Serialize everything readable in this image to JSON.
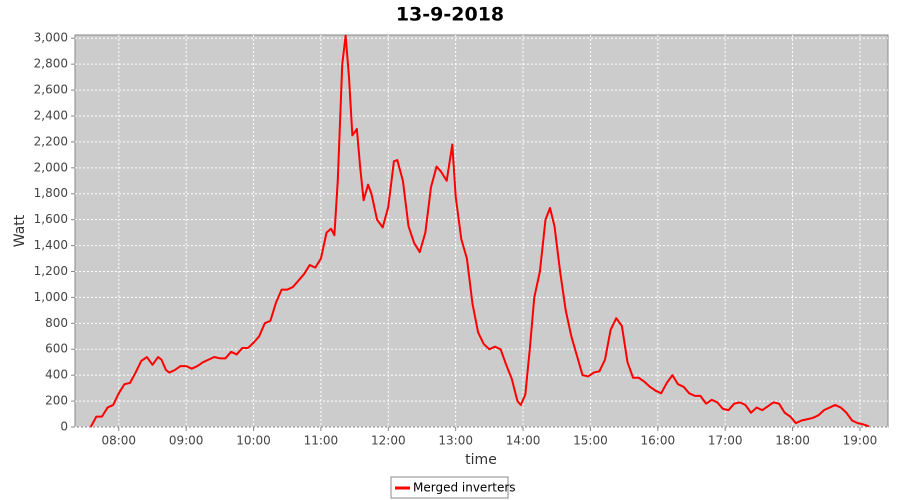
{
  "chart_data": {
    "type": "line",
    "title": "13-9-2018",
    "x_label": "time",
    "y_label": "Watt",
    "x": [
      "07:35",
      "07:40",
      "07:45",
      "07:50",
      "07:55",
      "08:00",
      "08:05",
      "08:10",
      "08:15",
      "08:20",
      "08:25",
      "08:30",
      "08:35",
      "08:38",
      "08:42",
      "08:45",
      "08:50",
      "08:55",
      "09:00",
      "09:05",
      "09:10",
      "09:15",
      "09:20",
      "09:25",
      "09:30",
      "09:35",
      "09:40",
      "09:45",
      "09:50",
      "09:55",
      "10:00",
      "10:05",
      "10:10",
      "10:15",
      "10:20",
      "10:25",
      "10:30",
      "10:35",
      "10:40",
      "10:45",
      "10:50",
      "10:55",
      "11:00",
      "11:05",
      "11:09",
      "11:12",
      "11:15",
      "11:19",
      "11:22",
      "11:25",
      "11:28",
      "11:32",
      "11:35",
      "11:38",
      "11:42",
      "11:45",
      "11:50",
      "11:55",
      "12:00",
      "12:05",
      "12:08",
      "12:13",
      "12:18",
      "12:23",
      "12:28",
      "12:33",
      "12:38",
      "12:43",
      "12:47",
      "12:52",
      "12:57",
      "13:00",
      "13:05",
      "13:10",
      "13:15",
      "13:20",
      "13:25",
      "13:30",
      "13:35",
      "13:40",
      "13:45",
      "13:50",
      "13:55",
      "13:58",
      "14:02",
      "14:06",
      "14:10",
      "14:15",
      "14:20",
      "14:24",
      "14:28",
      "14:33",
      "14:38",
      "14:43",
      "14:48",
      "14:53",
      "14:58",
      "15:03",
      "15:08",
      "15:13",
      "15:18",
      "15:23",
      "15:28",
      "15:33",
      "15:38",
      "15:43",
      "15:48",
      "15:53",
      "15:58",
      "16:03",
      "16:08",
      "16:13",
      "16:18",
      "16:23",
      "16:28",
      "16:33",
      "16:38",
      "16:43",
      "16:48",
      "16:53",
      "16:58",
      "17:03",
      "17:08",
      "17:13",
      "17:18",
      "17:23",
      "17:28",
      "17:33",
      "17:38",
      "17:43",
      "17:48",
      "17:53",
      "17:58",
      "18:03",
      "18:08",
      "18:13",
      "18:18",
      "18:23",
      "18:28",
      "18:33",
      "18:38",
      "18:43",
      "18:48",
      "18:53",
      "18:58",
      "19:03",
      "19:08"
    ],
    "series": [
      {
        "name": "Merged inverters",
        "color": "#ff0000",
        "values": [
          0,
          80,
          80,
          150,
          170,
          260,
          330,
          340,
          420,
          510,
          540,
          480,
          540,
          520,
          440,
          420,
          440,
          470,
          470,
          450,
          470,
          500,
          520,
          540,
          530,
          530,
          580,
          560,
          610,
          610,
          650,
          700,
          800,
          820,
          960,
          1060,
          1060,
          1080,
          1130,
          1180,
          1250,
          1230,
          1300,
          1500,
          1530,
          1480,
          1900,
          2800,
          3020,
          2700,
          2250,
          2300,
          2000,
          1750,
          1870,
          1800,
          1600,
          1540,
          1700,
          2050,
          2060,
          1900,
          1550,
          1420,
          1350,
          1500,
          1850,
          2010,
          1970,
          1900,
          2180,
          1780,
          1450,
          1300,
          950,
          730,
          640,
          600,
          620,
          600,
          480,
          370,
          200,
          170,
          250,
          600,
          1000,
          1200,
          1600,
          1690,
          1550,
          1200,
          900,
          700,
          550,
          400,
          390,
          420,
          430,
          520,
          750,
          840,
          780,
          500,
          380,
          380,
          350,
          310,
          280,
          260,
          340,
          400,
          330,
          310,
          260,
          240,
          240,
          180,
          210,
          190,
          140,
          130,
          180,
          190,
          170,
          110,
          150,
          130,
          160,
          190,
          180,
          110,
          80,
          30,
          50,
          60,
          70,
          90,
          130,
          150,
          170,
          150,
          110,
          50,
          30,
          20,
          5
        ]
      }
    ],
    "xlim": [
      "07:21",
      "19:25"
    ],
    "xticks": [
      "08:00",
      "09:00",
      "10:00",
      "11:00",
      "12:00",
      "13:00",
      "14:00",
      "15:00",
      "16:00",
      "17:00",
      "18:00",
      "19:00"
    ],
    "ylim": [
      0,
      3025
    ],
    "yticks": [
      0,
      200,
      400,
      600,
      800,
      {
        "value": 1000,
        "label": "1,000"
      },
      {
        "value": 1200,
        "label": "1,200"
      },
      {
        "value": 1400,
        "label": "1,400"
      },
      {
        "value": 1600,
        "label": "1,600"
      },
      {
        "value": 1800,
        "label": "1,800"
      },
      {
        "value": 2000,
        "label": "2,000"
      },
      {
        "value": 2200,
        "label": "2,200"
      },
      {
        "value": 2400,
        "label": "2,400"
      },
      {
        "value": 2600,
        "label": "2,600"
      },
      {
        "value": 2800,
        "label": "2,800"
      },
      {
        "value": 3000,
        "label": "3,000"
      }
    ],
    "grid": true
  }
}
